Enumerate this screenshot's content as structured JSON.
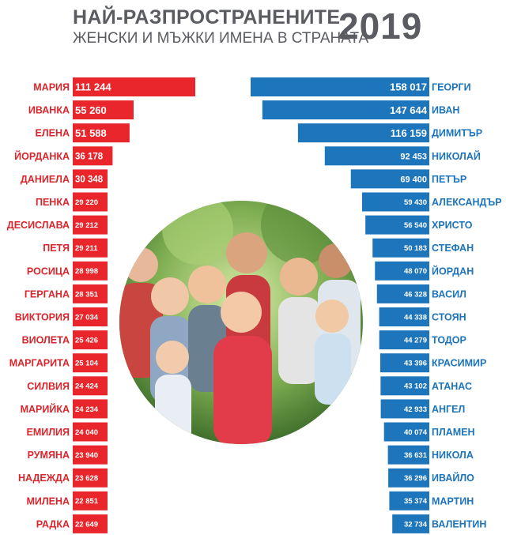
{
  "header": {
    "title": "НАЙ-РАЗПРОСТРАНЕНИТЕ",
    "subtitle": "ЖЕНСКИ И МЪЖКИ ИМЕНА В СТРАНАТА",
    "year": "2019"
  },
  "photo": {
    "description_icon": "family-photo-icon"
  },
  "chart_data": [
    {
      "type": "bar",
      "orientation": "horizontal",
      "direction": "right-to-left bars anchored at center-left",
      "color": "#e8262c",
      "categories": [
        "МАРИЯ",
        "ИВАНКА",
        "ЕЛЕНА",
        "ЙОРДАНКА",
        "ДАНИЕЛА",
        "ПЕНКА",
        "ДЕСИСЛАВА",
        "ПЕТЯ",
        "РОСИЦА",
        "ГЕРГАНА",
        "ВИКТОРИЯ",
        "ВИОЛЕТА",
        "МАРГАРИТА",
        "СИЛВИЯ",
        "МАРИЙКА",
        "ЕМИЛИЯ",
        "РУМЯНА",
        "НАДЕЖДА",
        "МИЛЕНА",
        "РАДКА"
      ],
      "values": [
        111244,
        55260,
        51588,
        36178,
        30348,
        29220,
        29212,
        29211,
        28998,
        28351,
        27034,
        25426,
        25104,
        24424,
        24234,
        24040,
        23940,
        23628,
        22851,
        22649
      ],
      "value_labels": [
        "111 244",
        "55 260",
        "51 588",
        "36 178",
        "30 348",
        "29 220",
        "29 212",
        "29 211",
        "28 998",
        "28 351",
        "27 034",
        "25 426",
        "25 104",
        "24 424",
        "24 234",
        "24 040",
        "23 940",
        "23 628",
        "22 851",
        "22 649"
      ]
    },
    {
      "type": "bar",
      "orientation": "horizontal",
      "direction": "bars anchored at center-right",
      "color": "#1d76bc",
      "categories": [
        "ГЕОРГИ",
        "ИВАН",
        "ДИМИТЪР",
        "НИКОЛАЙ",
        "ПЕТЪР",
        "АЛЕКСАНДЪР",
        "ХРИСТО",
        "СТЕФАН",
        "ЙОРДАН",
        "ВАСИЛ",
        "СТОЯН",
        "ТОДОР",
        "КРАСИМИР",
        "АТАНАС",
        "АНГЕЛ",
        "ПЛАМЕН",
        "НИКОЛА",
        "ИВАЙЛО",
        "МАРТИН",
        "ВАЛЕНТИН"
      ],
      "values": [
        158017,
        147644,
        116159,
        92453,
        69400,
        59430,
        56540,
        50183,
        48070,
        46328,
        44338,
        44279,
        43396,
        43102,
        42933,
        40074,
        36631,
        36296,
        35374,
        32734
      ],
      "value_labels": [
        "158 017",
        "147 644",
        "116 159",
        "92 453",
        "69 400",
        "59 430",
        "56 540",
        "50 183",
        "48 070",
        "46 328",
        "44 338",
        "44 279",
        "43 396",
        "43 102",
        "42 933",
        "40 074",
        "36 631",
        "36 296",
        "35 374",
        "32 734"
      ]
    }
  ]
}
